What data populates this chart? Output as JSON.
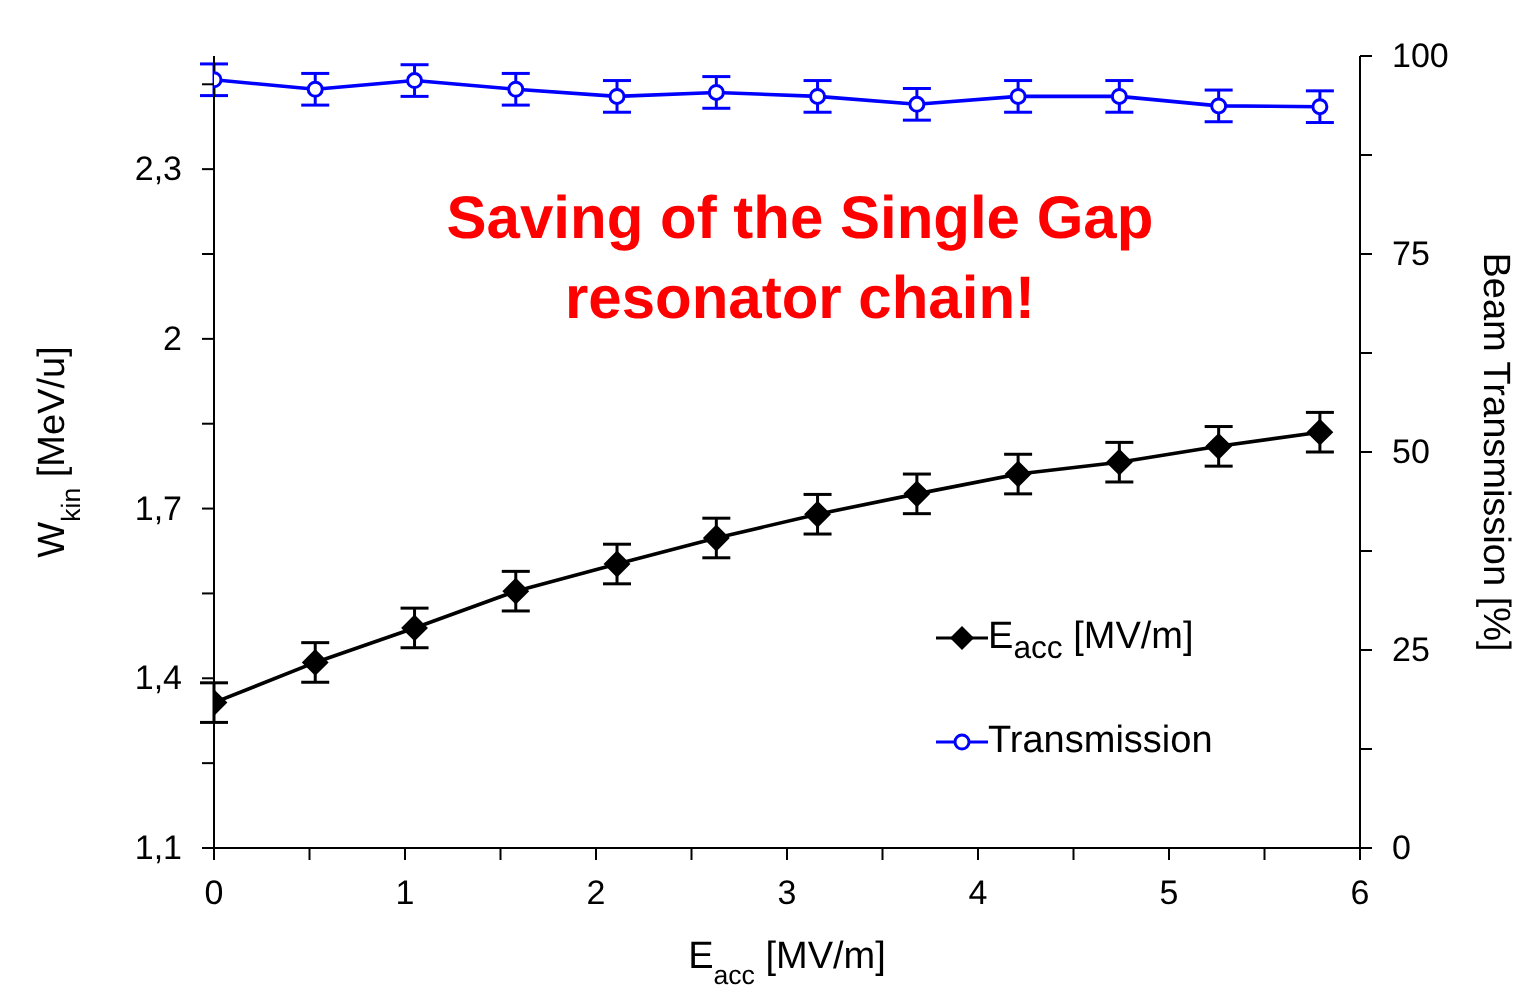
{
  "chart_data": {
    "type": "line",
    "annotations": [
      "Saving of the Single Gap resonator chain!"
    ],
    "xlabel": "E$_{acc}$ [MV/m]",
    "ylabel": "W$_{kin}$ [MeV/u]",
    "y2label": "Beam Transmission [%]",
    "x": [
      0,
      0.53,
      1.05,
      1.58,
      2.11,
      2.63,
      3.16,
      3.68,
      4.21,
      4.74,
      5.26,
      5.79
    ],
    "series": [
      {
        "name": "E$_{acc}$ [MV/m]",
        "color": "#000000",
        "marker": "diamond",
        "values": [
          1.357,
          1.428,
          1.489,
          1.554,
          1.602,
          1.648,
          1.69,
          1.726,
          1.761,
          1.782,
          1.81,
          1.835
        ],
        "errors": [
          0.035,
          0.035,
          0.035,
          0.035,
          0.035,
          0.035,
          0.035,
          0.035,
          0.035,
          0.035,
          0.035,
          0.035
        ]
      },
      {
        "name": "Transmission",
        "color": "#0000ff",
        "marker": "circle",
        "axis": "y2",
        "values": [
          97.0,
          95.8,
          96.9,
          95.8,
          94.9,
          95.4,
          94.9,
          93.9,
          94.9,
          94.9,
          93.7,
          93.6
        ],
        "errors": [
          2,
          2,
          2,
          2,
          2,
          2,
          2,
          2,
          2,
          2,
          2,
          2
        ]
      }
    ],
    "xlim": [
      0,
      6
    ],
    "xticks": [
      0,
      {
        "value": 0.5,
        "label": null
      },
      1,
      {
        "value": 1.5,
        "label": null
      },
      2,
      {
        "value": 2.5,
        "label": null
      },
      3,
      {
        "value": 3.5,
        "label": null
      },
      4,
      {
        "value": 4.5,
        "label": null
      },
      5,
      {
        "value": 5.5,
        "label": null
      },
      6
    ],
    "ylim": [
      1.1,
      2.5
    ],
    "yticks": [
      {
        "value": 1.1,
        "label": "1,1"
      },
      {
        "value": 1.25,
        "label": null
      },
      {
        "value": 1.4,
        "label": "1,4"
      },
      {
        "value": 1.55,
        "label": null
      },
      {
        "value": 1.7,
        "label": "1,7"
      },
      {
        "value": 1.85,
        "label": null
      },
      2,
      {
        "value": 2.15,
        "label": null
      },
      {
        "value": 2.3,
        "label": "2,3"
      },
      {
        "value": 2.45,
        "label": null
      }
    ],
    "y2lim": [
      0,
      100
    ],
    "y2ticks": [
      0,
      {
        "value": 12.5,
        "label": null
      },
      25,
      {
        "value": 37.5,
        "label": null
      },
      50,
      {
        "value": 62.5,
        "label": null
      },
      75,
      {
        "value": 87.5,
        "label": null
      },
      100
    ],
    "grid": false,
    "legend": "bottom right"
  }
}
